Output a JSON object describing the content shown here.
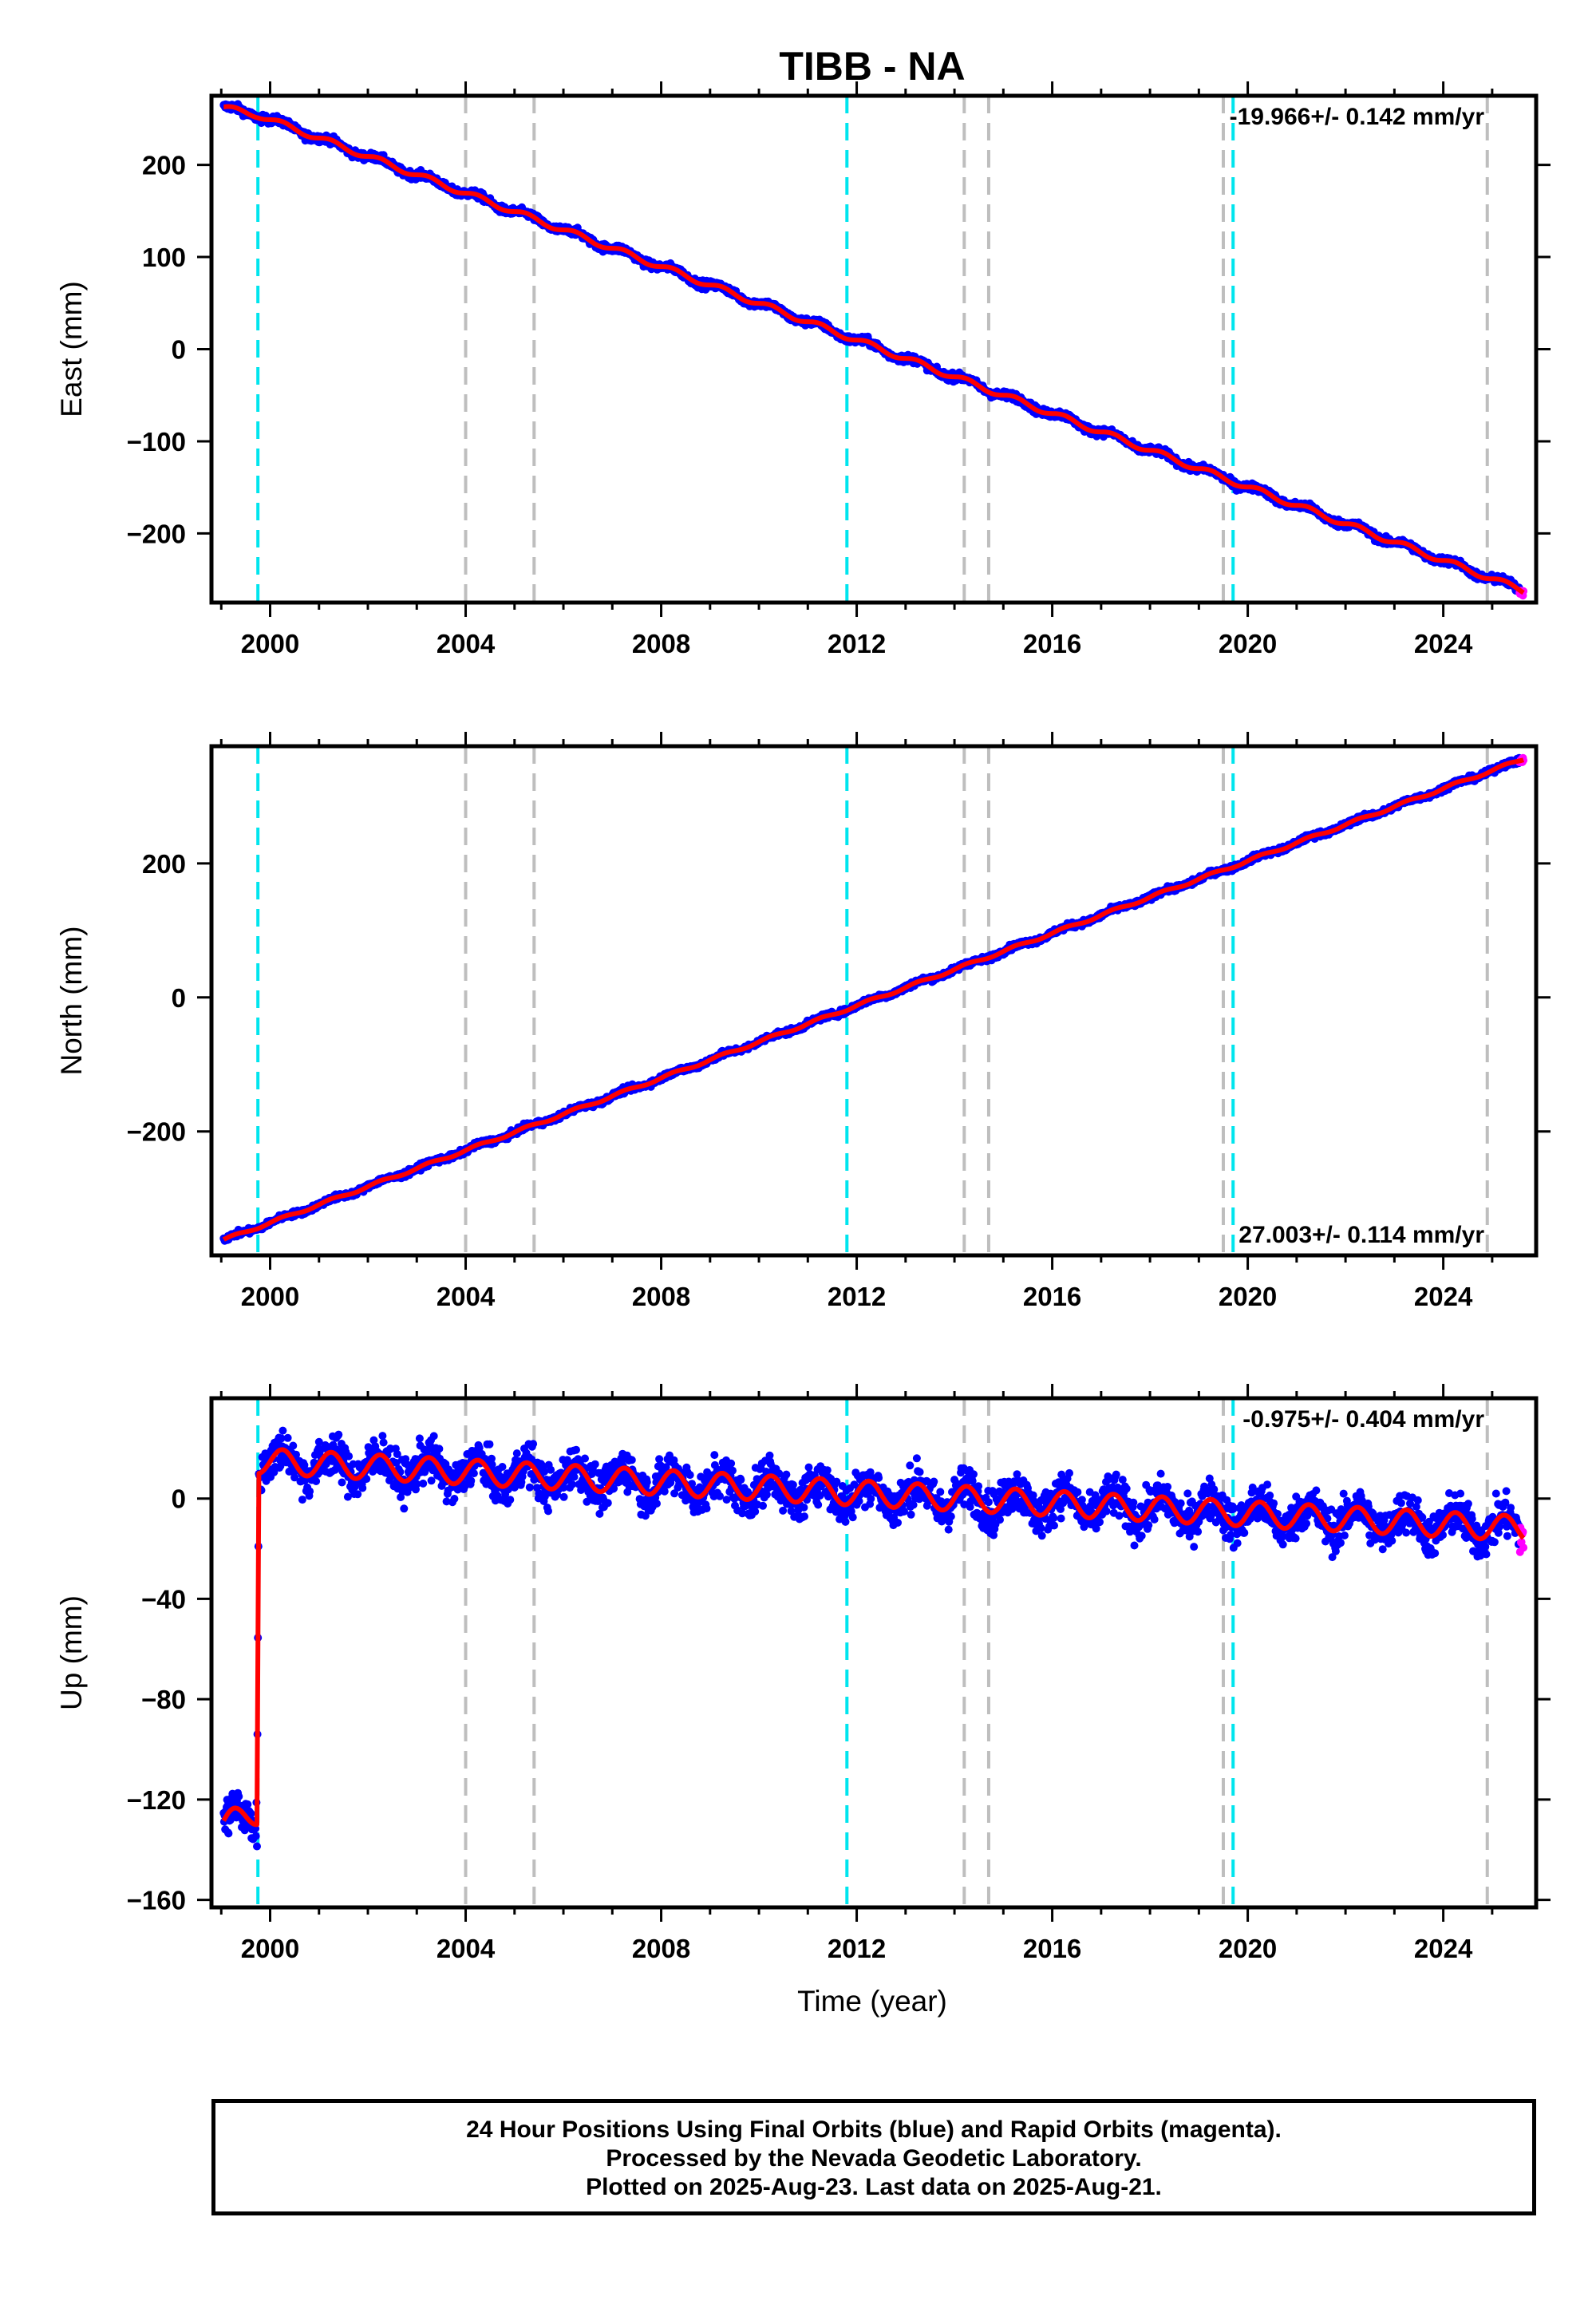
{
  "colors": {
    "final_orbits": "#0000ff",
    "rapid_orbits": "#ff00ff",
    "model_fit": "#ff0000",
    "antenna_change": "#00e5ee",
    "equipment_change": "#bebebe"
  },
  "chart_data": {
    "type": "scatter",
    "title": "TIBB - NA",
    "xlabel": "Time (year)",
    "xlim": [
      1998.8,
      2025.9
    ],
    "x_ticks": [
      2000,
      2004,
      2008,
      2012,
      2016,
      2020,
      2024
    ],
    "x_tick_labels": [
      "2000",
      "2004",
      "2008",
      "2012",
      "2016",
      "2020",
      "2024"
    ],
    "antenna_change_lines": [
      1999.75,
      2011.8,
      2019.7
    ],
    "equipment_change_lines": [
      2004.0,
      2005.4,
      2014.2,
      2014.7,
      2019.5,
      2024.9
    ],
    "data_start": 1999.05,
    "data_end": 2025.64,
    "rapid_orbits_start": 2025.55,
    "panels": [
      {
        "id": "east",
        "ylabel": "East (mm)",
        "ylim": [
          -275,
          275
        ],
        "y_ticks": [
          200,
          100,
          0,
          -100,
          -200
        ],
        "y_tick_labels": [
          "200",
          "100",
          "0",
          "−100",
          "−200"
        ],
        "rate_label": "-19.966+/- 0.142 mm/yr",
        "rate_position": "top-right",
        "trend": [
          [
            1999.05,
            262
          ],
          [
            1999.75,
            254
          ],
          [
            2025.64,
            -262
          ]
        ],
        "seasonal_amplitude": 3,
        "scatter": 3
      },
      {
        "id": "north",
        "ylabel": "North (mm)",
        "ylim": [
          -385,
          375
        ],
        "y_ticks": [
          200,
          0,
          -200
        ],
        "y_tick_labels": [
          "200",
          "0",
          "−200"
        ],
        "rate_label": "27.003+/- 0.114 mm/yr",
        "rate_position": "bottom-right",
        "trend": [
          [
            1999.05,
            -362
          ],
          [
            2025.64,
            356
          ]
        ],
        "seasonal_amplitude": 2,
        "scatter": 3
      },
      {
        "id": "up",
        "ylabel": "Up (mm)",
        "ylim": [
          -163,
          40
        ],
        "y_ticks": [
          0,
          -40,
          -80,
          -120,
          -160
        ],
        "y_tick_labels": [
          "0",
          "−40",
          "−80",
          "−120",
          "−160"
        ],
        "rate_label": "-0.975+/- 0.404 mm/yr",
        "rate_position": "top-right",
        "trend": [
          [
            1999.05,
            -130
          ],
          [
            1999.73,
            -125
          ],
          [
            1999.77,
            15
          ],
          [
            2025.64,
            -12
          ]
        ],
        "seasonal_amplitude": 5,
        "scatter": 6
      }
    ]
  },
  "footer": {
    "line1": "24 Hour Positions Using Final Orbits (blue) and Rapid Orbits (magenta).",
    "line2": "Processed by the Nevada Geodetic Laboratory.",
    "line3": "Plotted on 2025-Aug-23. Last data on 2025-Aug-21."
  }
}
